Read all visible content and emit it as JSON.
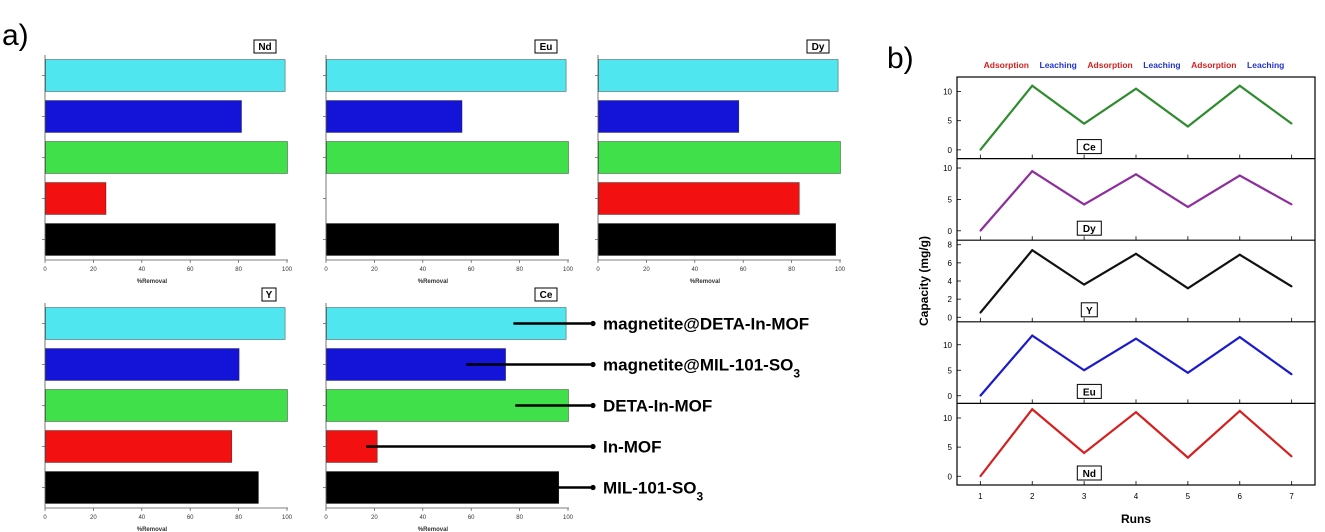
{
  "panel_a_label": "a)",
  "panel_b_label": "b)",
  "colors": {
    "magnetite@DETA-In-MOF": "#4fe6f0",
    "magnetite@MIL-101-SO3": "#1414d8",
    "DETA-In-MOF": "#3fe04a",
    "In-MOF": "#f21010",
    "MIL-101-SO3": "#000000",
    "Ce": "#2e8b2e",
    "Dy": "#8e2e9e",
    "Y": "#111111",
    "Eu": "#1a1acc",
    "Nd": "#d42020",
    "adsorption": "#d42020",
    "leaching": "#2233cc"
  },
  "legend": [
    {
      "key": "magnetite@DETA-In-MOF",
      "label": "magnetite@DETA-In-MOF",
      "sub": ""
    },
    {
      "key": "magnetite@MIL-101-SO3",
      "label": "magnetite@MIL-101-SO",
      "sub": "3"
    },
    {
      "key": "DETA-In-MOF",
      "label": "DETA-In-MOF",
      "sub": ""
    },
    {
      "key": "In-MOF",
      "label": "In-MOF",
      "sub": ""
    },
    {
      "key": "MIL-101-SO3",
      "label": "MIL-101-SO",
      "sub": "3"
    }
  ],
  "chart_data": [
    {
      "type": "bar",
      "orientation": "horizontal",
      "title": "Nd",
      "xlabel": "%Removal",
      "xlim": [
        0,
        100
      ],
      "xticks": [
        "0",
        "20",
        "40",
        "60",
        "80",
        "100"
      ],
      "series": [
        {
          "name": "magnetite@DETA-In-MOF",
          "value": 99
        },
        {
          "name": "magnetite@MIL-101-SO3",
          "value": 81
        },
        {
          "name": "DETA-In-MOF",
          "value": 100
        },
        {
          "name": "In-MOF",
          "value": 25
        },
        {
          "name": "MIL-101-SO3",
          "value": 95
        }
      ]
    },
    {
      "type": "bar",
      "orientation": "horizontal",
      "title": "Eu",
      "xlabel": "%Removal",
      "xlim": [
        0,
        100
      ],
      "xticks": [
        "0",
        "20",
        "40",
        "60",
        "80",
        "100"
      ],
      "series": [
        {
          "name": "magnetite@DETA-In-MOF",
          "value": 99
        },
        {
          "name": "magnetite@MIL-101-SO3",
          "value": 56
        },
        {
          "name": "DETA-In-MOF",
          "value": 100
        },
        {
          "name": "In-MOF",
          "value": 0
        },
        {
          "name": "MIL-101-SO3",
          "value": 96
        }
      ]
    },
    {
      "type": "bar",
      "orientation": "horizontal",
      "title": "Dy",
      "xlabel": "%Removal",
      "xlim": [
        0,
        100
      ],
      "xticks": [
        "0",
        "20",
        "40",
        "60",
        "80",
        "100"
      ],
      "series": [
        {
          "name": "magnetite@DETA-In-MOF",
          "value": 99
        },
        {
          "name": "magnetite@MIL-101-SO3",
          "value": 58
        },
        {
          "name": "DETA-In-MOF",
          "value": 100
        },
        {
          "name": "In-MOF",
          "value": 83
        },
        {
          "name": "MIL-101-SO3",
          "value": 98
        }
      ]
    },
    {
      "type": "bar",
      "orientation": "horizontal",
      "title": "Y",
      "xlabel": "%Removal",
      "xlim": [
        0,
        100
      ],
      "xticks": [
        "0",
        "20",
        "40",
        "60",
        "80",
        "100"
      ],
      "series": [
        {
          "name": "magnetite@DETA-In-MOF",
          "value": 99
        },
        {
          "name": "magnetite@MIL-101-SO3",
          "value": 80
        },
        {
          "name": "DETA-In-MOF",
          "value": 100
        },
        {
          "name": "In-MOF",
          "value": 77
        },
        {
          "name": "MIL-101-SO3",
          "value": 88
        }
      ]
    },
    {
      "type": "bar",
      "orientation": "horizontal",
      "title": "Ce",
      "xlabel": "%Removal",
      "xlim": [
        0,
        100
      ],
      "xticks": [
        "0",
        "20",
        "40",
        "60",
        "80",
        "100"
      ],
      "series": [
        {
          "name": "magnetite@DETA-In-MOF",
          "value": 99
        },
        {
          "name": "magnetite@MIL-101-SO3",
          "value": 74
        },
        {
          "name": "DETA-In-MOF",
          "value": 100
        },
        {
          "name": "In-MOF",
          "value": 21
        },
        {
          "name": "MIL-101-SO3",
          "value": 96
        }
      ]
    },
    {
      "type": "line",
      "xlabel": "Runs",
      "ylabel": "Capacity (mg/g)",
      "x": [
        1,
        2,
        3,
        4,
        5,
        6,
        7
      ],
      "phase_labels": [
        "Adsorption",
        "Leaching",
        "Adsorption",
        "Leaching",
        "Adsorption",
        "Leaching"
      ],
      "panels": [
        {
          "name": "Ce",
          "values": [
            0,
            11,
            4.5,
            10.5,
            4,
            11,
            4.5
          ],
          "ylim": [
            -1.5,
            12.5
          ],
          "yticks": [
            0,
            5,
            10
          ],
          "yticklabels": [
            "0",
            "5",
            "10"
          ]
        },
        {
          "name": "Dy",
          "values": [
            0,
            9.5,
            4.2,
            9.0,
            3.8,
            8.8,
            4.2
          ],
          "ylim": [
            -1.5,
            11.5
          ],
          "yticks": [
            0,
            5,
            10
          ],
          "yticklabels": [
            "0",
            "5",
            "10"
          ]
        },
        {
          "name": "Y",
          "values": [
            0.5,
            7.4,
            3.6,
            7.0,
            3.2,
            6.9,
            3.4
          ],
          "ylim": [
            -0.5,
            8.5
          ],
          "yticks": [
            0,
            2,
            4,
            6,
            8
          ],
          "yticklabels": [
            "0",
            "2",
            "4",
            "6",
            "8"
          ]
        },
        {
          "name": "Eu",
          "values": [
            0,
            11.8,
            5.0,
            11.2,
            4.5,
            11.5,
            4.2
          ],
          "ylim": [
            -1.5,
            14.5
          ],
          "yticks": [
            0,
            5,
            10
          ],
          "yticklabels": [
            "0",
            "5",
            "10"
          ]
        },
        {
          "name": "Nd",
          "values": [
            0,
            11.5,
            4.0,
            11.0,
            3.2,
            11.2,
            3.4
          ],
          "ylim": [
            -1.5,
            12.5
          ],
          "yticks": [
            0,
            5,
            10
          ],
          "yticklabels": [
            "0",
            "5",
            "10"
          ]
        }
      ]
    }
  ]
}
